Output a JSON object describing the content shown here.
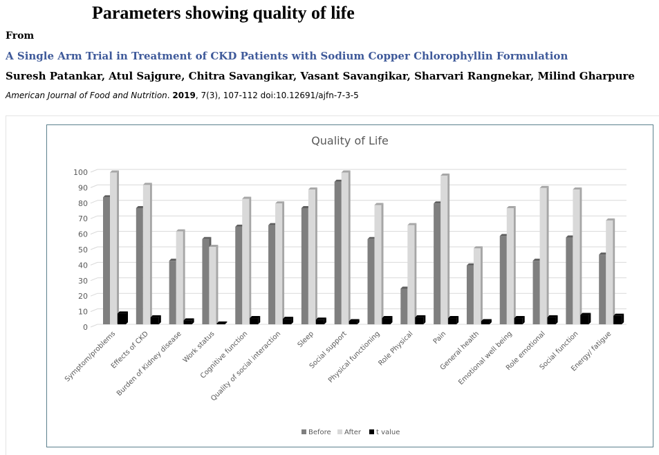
{
  "header": {
    "title": "Parameters showing quality of life",
    "from_label": "From",
    "article_title": "A Single Arm Trial in Treatment of CKD Patients with Sodium Copper Chlorophyllin Formulation",
    "authors": "Suresh Patankar, Atul Sajgure, Chitra Savangikar, Vasant Savangikar, Sharvari Rangnekar, Milind Gharpure",
    "journal": "American Journal of Food and Nutrition",
    "year": "2019",
    "citation_rest": ", 7(3), 107-112 doi:10.12691/ajfn-7-3-5"
  },
  "chart_data": {
    "type": "bar",
    "title": "Quality of Life",
    "ylim": [
      0,
      100
    ],
    "yticks": [
      "0",
      "10",
      "20",
      "30",
      "40",
      "50",
      "60",
      "70",
      "80",
      "90",
      "100"
    ],
    "grid": true,
    "legend_position": "bottom",
    "categories": [
      "Symptom/problems",
      "Effects of CKD",
      "Burden of Kidney disease",
      "Work status",
      "Cognitive function",
      "Quality of social interaction",
      "Sleep",
      "Social support",
      "Physical functioning",
      "Role Physical",
      "Pain",
      "General health",
      "Emotional well being",
      "Role emotional",
      "Social function",
      "Energy/ fatigue"
    ],
    "series": [
      {
        "name": "Before",
        "color": "#7f7f7f",
        "values": [
          82,
          75,
          41,
          55,
          63,
          64,
          75,
          92,
          55,
          23,
          78,
          38,
          57,
          41,
          56,
          45
        ]
      },
      {
        "name": "After",
        "color": "#d9d9d9",
        "values": [
          98,
          90,
          60,
          50,
          81,
          78,
          87,
          98,
          77,
          64,
          96,
          49,
          75,
          88,
          87,
          67
        ]
      },
      {
        "name": "t value",
        "color": "#000000",
        "values": [
          7,
          4.5,
          2.5,
          0.5,
          4,
          3.5,
          3,
          2,
          4,
          4.5,
          4,
          2,
          4,
          4.5,
          6,
          5.5
        ]
      }
    ]
  }
}
